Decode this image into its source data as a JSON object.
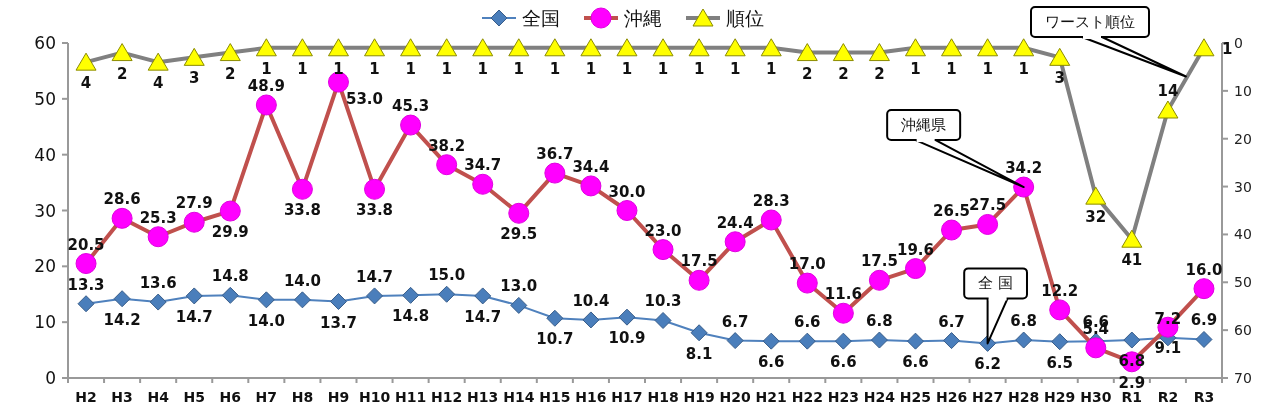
{
  "chart_data": {
    "type": "line",
    "categories": [
      "H2",
      "H3",
      "H4",
      "H5",
      "H6",
      "H7",
      "H8",
      "H9",
      "H10",
      "H11",
      "H12",
      "H13",
      "H14",
      "H15",
      "H16",
      "H17",
      "H18",
      "H19",
      "H20",
      "H21",
      "H22",
      "H23",
      "H24",
      "H25",
      "H26",
      "H27",
      "H28",
      "H29",
      "H30",
      "R1",
      "R2",
      "R3"
    ],
    "series": [
      {
        "name": "全国",
        "color": "#4f81bd",
        "marker": "diamond",
        "values": [
          13.3,
          14.2,
          13.6,
          14.7,
          14.8,
          14.0,
          14.0,
          13.7,
          14.7,
          14.8,
          15.0,
          14.7,
          13.0,
          10.7,
          10.4,
          10.9,
          10.3,
          8.1,
          6.7,
          6.6,
          6.6,
          6.6,
          6.8,
          6.6,
          6.7,
          6.2,
          6.8,
          6.5,
          6.6,
          6.8,
          7.2,
          6.9
        ],
        "value_labels": [
          "13.3",
          "14.2",
          "13.6",
          "14.7",
          "14.8",
          "14.0",
          "14.0",
          "13.7",
          "14.7",
          "14.8",
          "15.0",
          "14.7",
          "13.0",
          "10.7",
          "10.4",
          "10.9",
          "10.3",
          "8.1",
          "6.7",
          "6.6",
          "6.6",
          "6.6",
          "6.8",
          "6.6",
          "6.7",
          "6.2",
          "6.8",
          "6.5",
          "6.6",
          "6.8",
          "7.2",
          "6.9"
        ]
      },
      {
        "name": "沖縄",
        "color": "#c0504d",
        "marker": "circle",
        "values": [
          20.5,
          28.6,
          25.3,
          27.9,
          29.9,
          48.9,
          33.8,
          53.0,
          33.8,
          45.3,
          38.2,
          34.7,
          29.5,
          36.7,
          34.4,
          30.0,
          23.0,
          17.5,
          24.4,
          28.3,
          17.0,
          11.6,
          17.5,
          19.6,
          26.5,
          27.5,
          34.2,
          12.2,
          5.4,
          2.9,
          9.1,
          16.0
        ],
        "value_labels": [
          "20.5",
          "28.6",
          "25.3",
          "27.9",
          "29.9",
          "48.9",
          "33.8",
          "53.0",
          "33.8",
          "45.3",
          "38.2",
          "34.7",
          "29.5",
          "36.7",
          "34.4",
          "30.0",
          "23.0",
          "17.5",
          "24.4",
          "28.3",
          "17.0",
          "11.6",
          "17.5",
          "19.6",
          "26.5",
          "27.5",
          "34.2",
          "12.2",
          "5.4",
          "2.9",
          "9.1",
          "16.0"
        ]
      },
      {
        "name": "順位",
        "color": "#808080",
        "marker": "triangle",
        "axis": "y2",
        "values": [
          4,
          2,
          4,
          3,
          2,
          1,
          1,
          1,
          1,
          1,
          1,
          1,
          1,
          1,
          1,
          1,
          1,
          1,
          1,
          1,
          2,
          2,
          2,
          1,
          1,
          1,
          1,
          3,
          32,
          41,
          14,
          1
        ],
        "value_labels": [
          "4",
          "2",
          "4",
          "3",
          "2",
          "1",
          "1",
          "1",
          "1",
          "1",
          "1",
          "1",
          "1",
          "1",
          "1",
          "1",
          "1",
          "1",
          "1",
          "1",
          "2",
          "2",
          "2",
          "1",
          "1",
          "1",
          "1",
          "3",
          "32",
          "41",
          "14",
          "1"
        ]
      }
    ],
    "ylim": [
      0,
      60
    ],
    "yticks": [
      0,
      10,
      20,
      30,
      40,
      50,
      60
    ],
    "y2lim": [
      70,
      0
    ],
    "y2ticks": [
      0,
      10,
      20,
      30,
      40,
      50,
      60,
      70
    ],
    "grid": false,
    "legend": "top",
    "annotations": [
      {
        "text": "沖縄県",
        "x": "H28",
        "y": 34.2
      },
      {
        "text": "全 国",
        "x": "H27",
        "y": 6.2
      },
      "ワースト順位"
    ]
  }
}
